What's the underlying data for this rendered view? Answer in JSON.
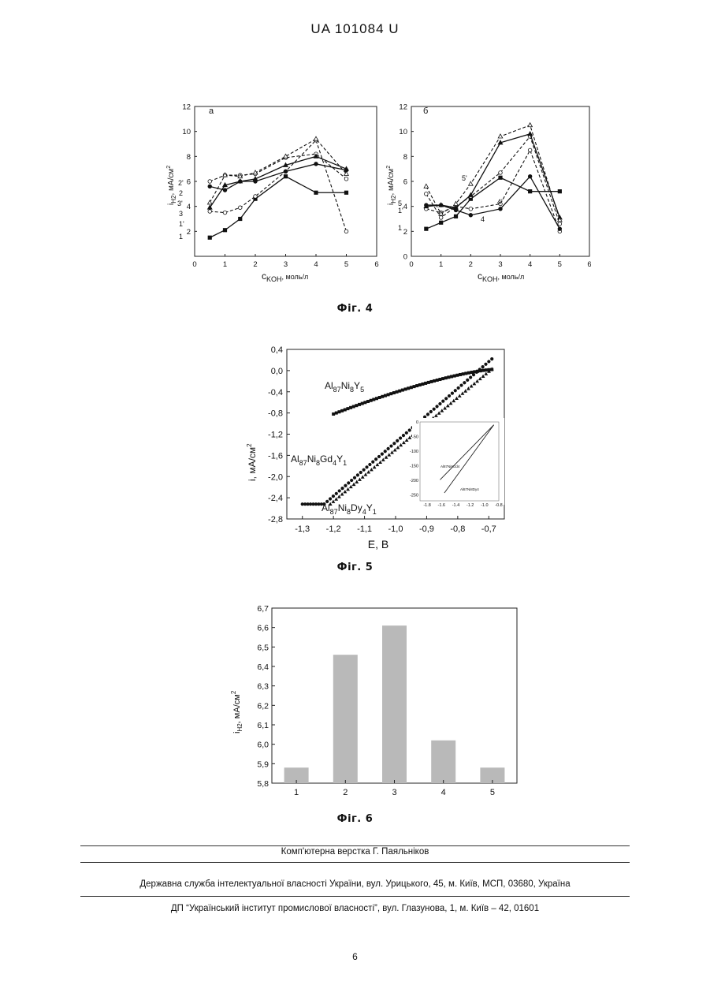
{
  "header": {
    "patent": "UA   101084   U"
  },
  "fig4": {
    "caption": "Фіг. 4",
    "panel_a": {
      "label": "а",
      "y_ticks": [
        "2",
        "4",
        "6",
        "8",
        "10",
        "12"
      ],
      "x_ticks": [
        "0",
        "1",
        "2",
        "3",
        "4",
        "5",
        "6"
      ],
      "ylabel_main": "i",
      "ylabel_sub": "H2",
      "ylabel_rest": ", мА/см",
      "ylabel_sup": "2",
      "xlabel_main": "c",
      "xlabel_sub": "KOH",
      "xlabel_rest": ", моль/л",
      "curve_labels": [
        "2'",
        "2",
        "3'",
        "3",
        "1'",
        "1"
      ]
    },
    "panel_b": {
      "label": "б",
      "y_ticks": [
        "0",
        "2",
        "4",
        "6",
        "8",
        "10",
        "12"
      ],
      "x_ticks": [
        "0",
        "1",
        "2",
        "3",
        "4",
        "5",
        "6"
      ],
      "ylabel_main": "i",
      "ylabel_sub": "H2",
      "ylabel_rest": ", мА/см",
      "ylabel_sup": "2",
      "xlabel_main": "c",
      "xlabel_sub": "KOH",
      "xlabel_rest": ", моль/л",
      "curve_labels": [
        "5'",
        "5",
        "1'",
        "1",
        "4'",
        "4"
      ]
    }
  },
  "fig5": {
    "caption": "Фіг. 5",
    "xlabel": "E, B",
    "ylabel": "i, мА/см",
    "ylabel_sup": "2",
    "x_ticks": [
      "-1,3",
      "-1,2",
      "-1,1",
      "-1,0",
      "-0,9",
      "-0,8",
      "-0,7"
    ],
    "y_ticks": [
      "0,4",
      "0,0",
      "-0,4",
      "-0,8",
      "-1,2",
      "-1,6",
      "-2,0",
      "-2,4",
      "-2,8"
    ],
    "series_labels": [
      {
        "main1": "Al",
        "sub1": "87",
        "main2": "Ni",
        "sub2": "8",
        "main3": "Y",
        "sub3": "5"
      },
      {
        "main1": "Al",
        "sub1": "87",
        "main2": "Ni",
        "sub2": "8",
        "main3": "Gd",
        "sub3": "4",
        "main4": "Y",
        "sub4": "1"
      },
      {
        "main1": "Al",
        "sub1": "87",
        "main2": "Ni",
        "sub2": "8",
        "main3": "Dy",
        "sub3": "4",
        "main4": "Y",
        "sub4": "1"
      }
    ],
    "inset": {
      "x_ticks": [
        "-1.8",
        "-1.6",
        "-1.4",
        "-1.2",
        "-1.0",
        "-0.8"
      ],
      "y_ticks": [
        "0",
        "-50",
        "-100",
        "-150",
        "-200",
        "-250"
      ],
      "line_labels": [
        "Al87Ni8Gd4",
        "Al87Ni8Dy4"
      ]
    }
  },
  "fig6": {
    "caption": "Фіг. 6",
    "ylabel": "i",
    "ylabel_sub": "H2",
    "ylabel_rest": ", мА/см",
    "ylabel_sup": "2",
    "y_ticks": [
      "5,8",
      "5,9",
      "6,0",
      "6,1",
      "6,2",
      "6,3",
      "6,4",
      "6,5",
      "6,6",
      "6,7"
    ],
    "bar_color": "#b9b9b9"
  },
  "chart_data": [
    {
      "type": "line",
      "title": "а",
      "xlabel": "cKOH, моль/л",
      "ylabel": "iH2, мА/см2",
      "xlim": [
        0,
        6
      ],
      "ylim": [
        0,
        12
      ],
      "x": [
        0.5,
        1,
        1.5,
        2,
        3,
        4,
        5
      ],
      "series": [
        {
          "name": "1",
          "values": [
            1.5,
            2.1,
            3.0,
            4.6,
            6.4,
            5.1,
            5.1
          ],
          "style": "solid",
          "marker": "square"
        },
        {
          "name": "1'",
          "values": [
            3.6,
            3.5,
            3.9,
            4.8,
            6.8,
            9.3,
            2.0
          ],
          "style": "dashed",
          "marker": "circle-open"
        },
        {
          "name": "2",
          "values": [
            5.6,
            5.3,
            6.0,
            6.0,
            6.8,
            7.4,
            6.9
          ],
          "style": "solid",
          "marker": "circle"
        },
        {
          "name": "2'",
          "values": [
            6.0,
            6.5,
            6.5,
            6.6,
            7.9,
            8.2,
            6.2
          ],
          "style": "dashed",
          "marker": "circle-open"
        },
        {
          "name": "3",
          "values": [
            3.9,
            5.7,
            6.0,
            6.2,
            7.3,
            8.0,
            7.0
          ],
          "style": "solid",
          "marker": "triangle"
        },
        {
          "name": "3'",
          "values": [
            4.3,
            6.5,
            6.4,
            6.7,
            8.0,
            9.4,
            6.6
          ],
          "style": "dashed",
          "marker": "triangle-open"
        }
      ]
    },
    {
      "type": "line",
      "title": "б",
      "xlabel": "cKOH, моль/л",
      "ylabel": "iH2, мА/см2",
      "xlim": [
        0,
        6
      ],
      "ylim": [
        0,
        12
      ],
      "x": [
        0.5,
        1,
        1.5,
        2,
        3,
        4,
        5
      ],
      "series": [
        {
          "name": "1",
          "values": [
            2.2,
            2.7,
            3.2,
            4.6,
            6.3,
            5.2,
            5.2
          ],
          "style": "solid",
          "marker": "square"
        },
        {
          "name": "1'",
          "values": [
            3.8,
            3.5,
            4.0,
            3.8,
            4.2,
            8.5,
            2.0
          ],
          "style": "dashed",
          "marker": "circle-open"
        },
        {
          "name": "4",
          "values": [
            4.1,
            4.1,
            3.7,
            3.3,
            3.8,
            6.4,
            2.2
          ],
          "style": "solid",
          "marker": "circle"
        },
        {
          "name": "4'",
          "values": [
            5.0,
            3.1,
            4.0,
            4.8,
            6.7,
            9.6,
            2.6
          ],
          "style": "dashed",
          "marker": "circle-open"
        },
        {
          "name": "5",
          "values": [
            4.0,
            4.1,
            3.9,
            4.9,
            9.1,
            9.8,
            3.1
          ],
          "style": "solid",
          "marker": "triangle"
        },
        {
          "name": "5'",
          "values": [
            5.6,
            3.4,
            4.2,
            5.8,
            9.6,
            10.5,
            2.9
          ],
          "style": "dashed",
          "marker": "triangle-open"
        }
      ]
    },
    {
      "type": "scatter",
      "xlabel": "E, B",
      "ylabel": "i, мА/см2",
      "xlim": [
        -1.35,
        -0.65
      ],
      "ylim": [
        -2.8,
        0.4
      ],
      "series": [
        {
          "name": "Al87Ni8Y5",
          "marker": "square",
          "start": [
            -1.2,
            -0.82
          ],
          "end": [
            -0.69,
            0.02
          ]
        },
        {
          "name": "Al87Ni8Gd4Y1",
          "marker": "circle",
          "flat": [
            [
              -1.3,
              -2.52
            ],
            [
              -1.23,
              -2.52
            ]
          ],
          "start": [
            -1.23,
            -2.52
          ],
          "end": [
            -0.69,
            0.22
          ]
        },
        {
          "name": "Al87Ni8Dy4Y1",
          "marker": "triangle",
          "start": [
            -1.21,
            -2.52
          ],
          "end": [
            -0.69,
            0.03
          ]
        }
      ],
      "inset": {
        "xlim": [
          -1.9,
          -0.8
        ],
        "ylim": [
          -270,
          0
        ],
        "lines": [
          {
            "name": "Al87Ni8Gd4",
            "start": [
              -1.62,
              -198
            ],
            "end": [
              -0.87,
              -10
            ]
          },
          {
            "name": "Al87Ni8Dy4",
            "start": [
              -1.56,
              -243
            ],
            "end": [
              -0.87,
              -10
            ]
          }
        ]
      }
    },
    {
      "type": "bar",
      "categories": [
        "1",
        "2",
        "3",
        "4",
        "5"
      ],
      "values": [
        5.88,
        6.46,
        6.61,
        6.02,
        5.88
      ],
      "xlabel": "",
      "ylabel": "iH2, мА/см2",
      "ylim": [
        5.8,
        6.7
      ]
    }
  ],
  "footer": {
    "line1": "Комп'ютерна верстка Г. Паяльніков",
    "line2": "Державна служба інтелектуальної власності України, вул. Урицького, 45, м. Київ, МСП, 03680, Україна",
    "line3": "ДП “Український інститут промислової власності”, вул. Глазунова, 1, м. Київ – 42, 01601",
    "page_number": "6"
  }
}
